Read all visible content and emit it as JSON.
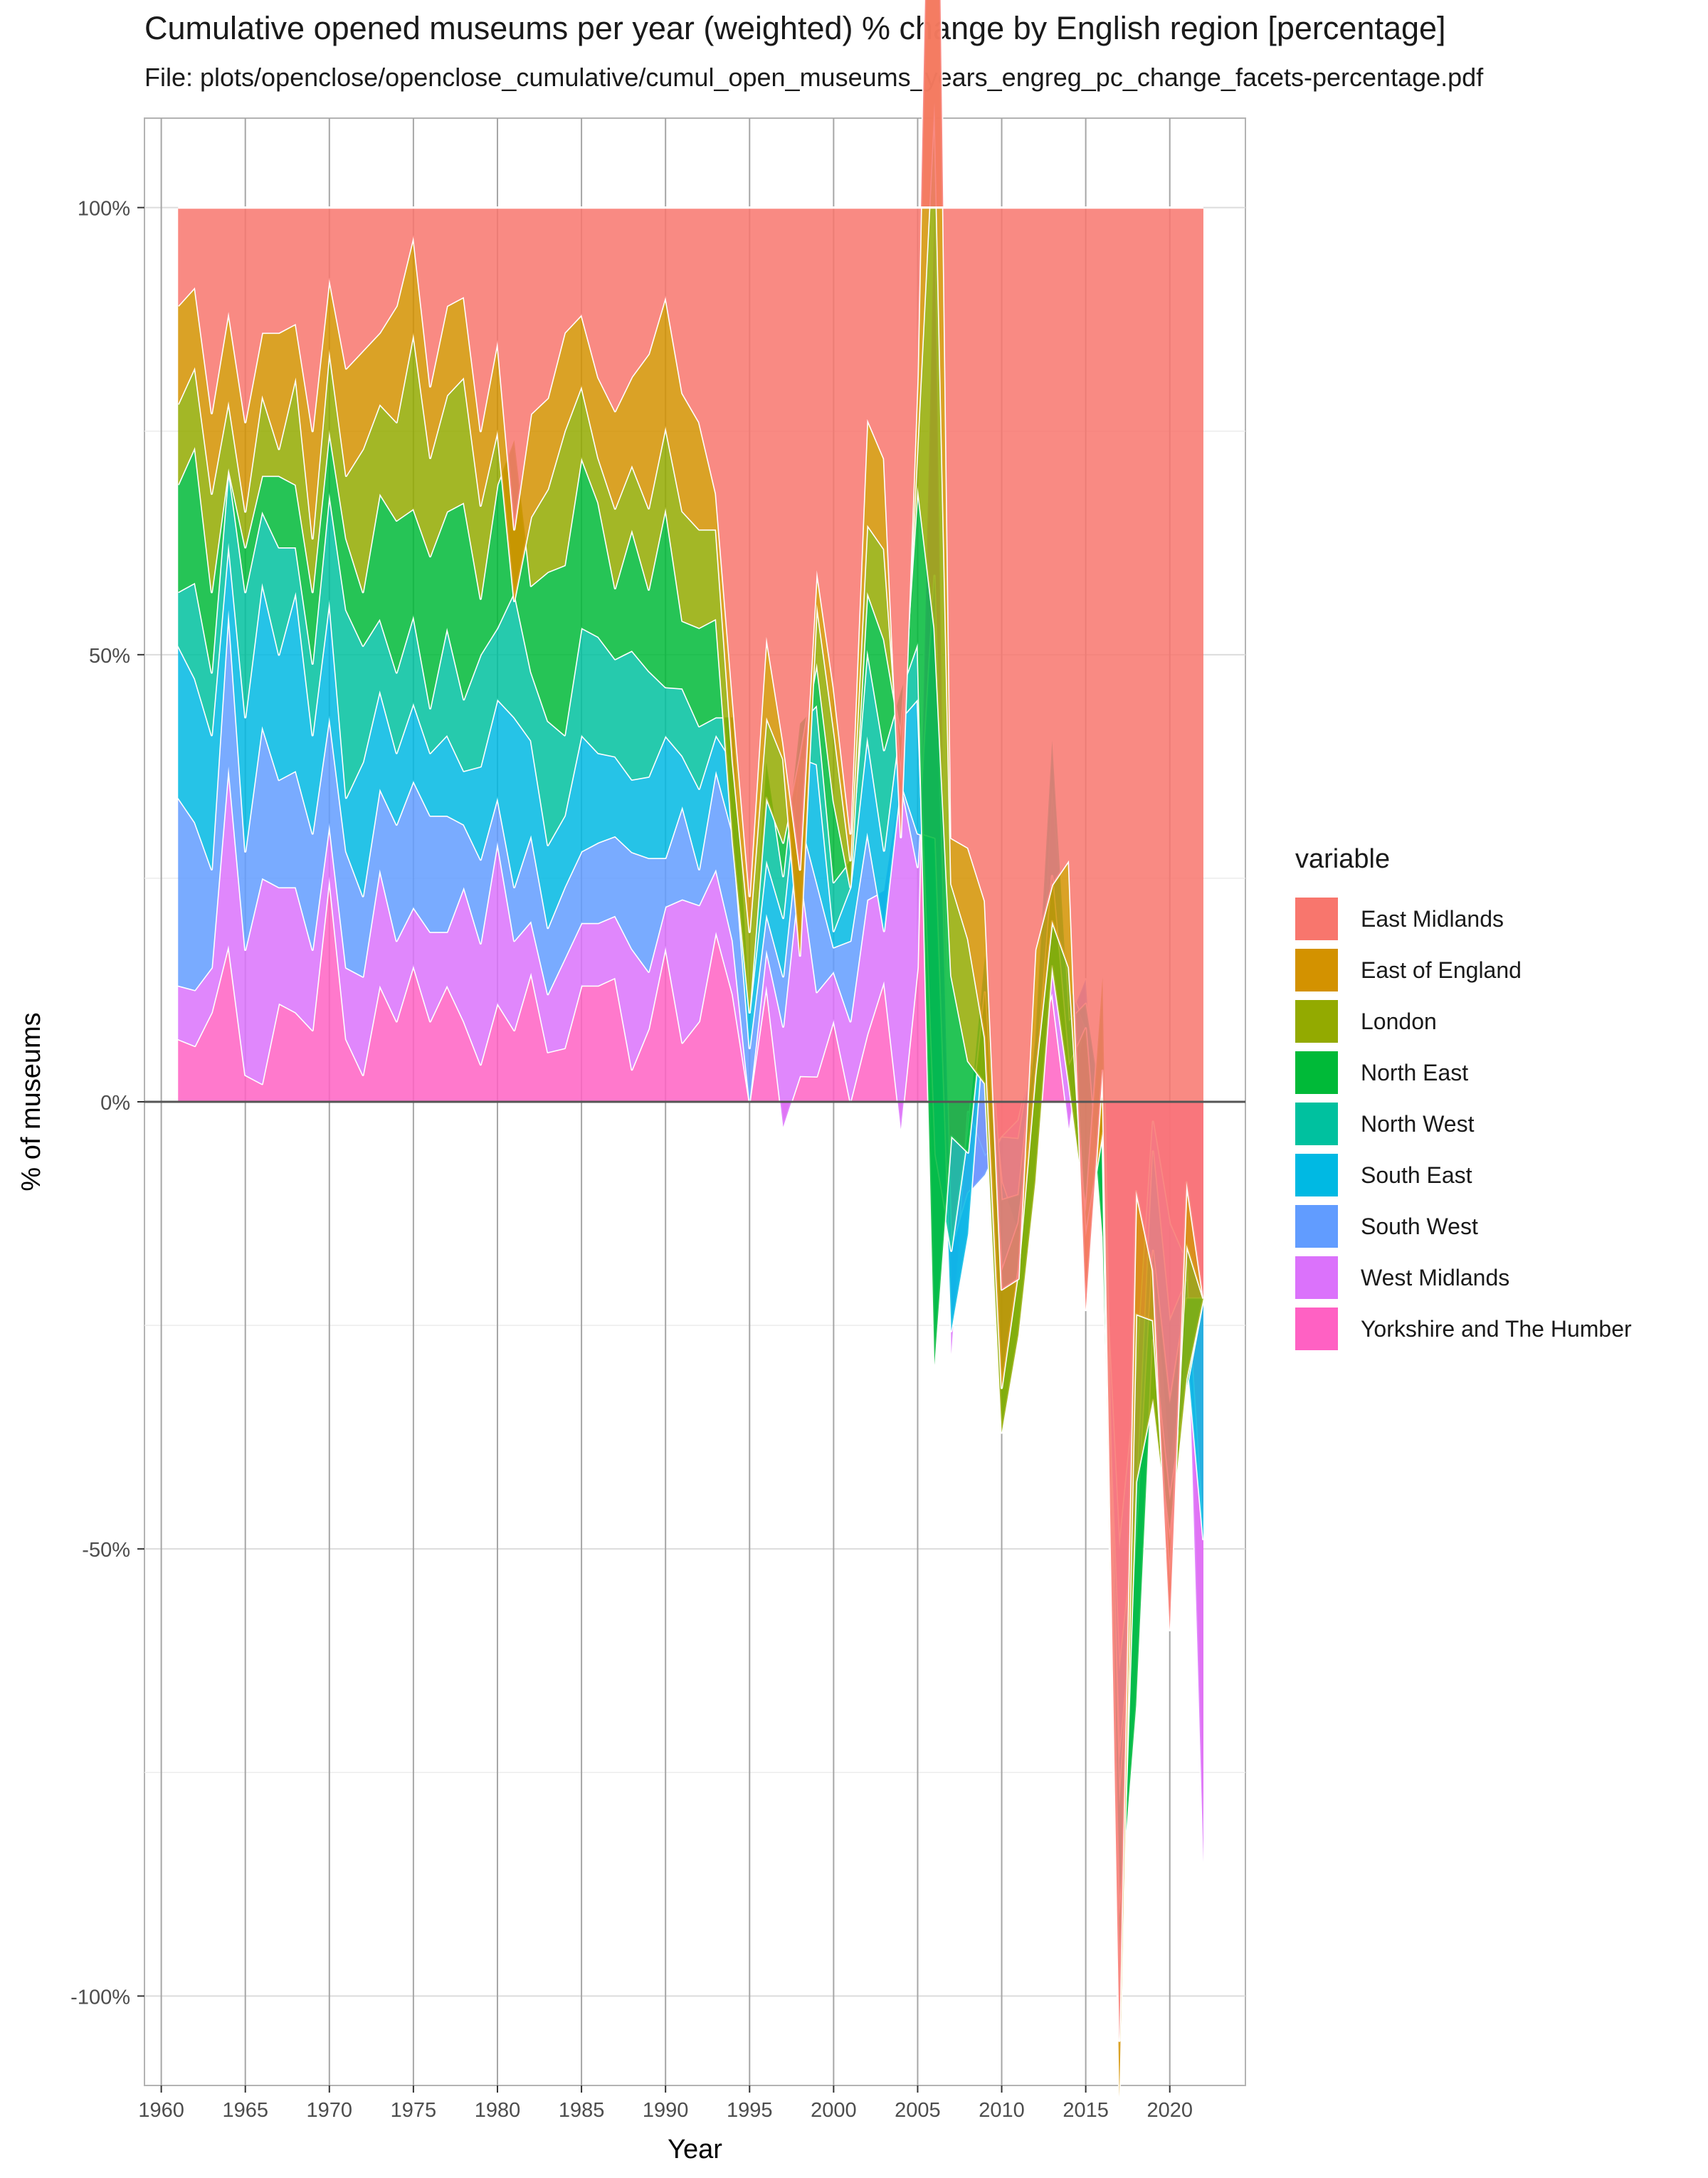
{
  "title": "Cumulative opened museums per year (weighted) % change by English region [percentage]",
  "subtitle": "File: plots/openclose/openclose_cumulative/cumul_open_museums_years_engreg_pc_change_facets-percentage.pdf",
  "legend_title": "variable",
  "chart_data": {
    "type": "area",
    "title": "Cumulative opened museums per year (weighted) % change by English region [percentage]",
    "xlabel": "Year",
    "ylabel": "% of museums",
    "xlim": [
      1959,
      2024.5
    ],
    "ylim": [
      -110,
      110
    ],
    "x_ticks": [
      1960,
      1965,
      1970,
      1975,
      1980,
      1985,
      1990,
      1995,
      2000,
      2005,
      2010,
      2015,
      2020
    ],
    "y_ticks": [
      -100,
      -50,
      0,
      50,
      100
    ],
    "y_tick_labels": [
      "-100%",
      "-50%",
      "0%",
      "50%",
      "100%"
    ],
    "x_tick_labels": [
      "1960",
      "1965",
      "1970",
      "1975",
      "1980",
      "1985",
      "1990",
      "1995",
      "2000",
      "2005",
      "2010",
      "2015",
      "2020"
    ],
    "grid": true,
    "legend_position": "right",
    "stacking": "percent",
    "x": [
      1961,
      1962,
      1963,
      1964,
      1965,
      1966,
      1967,
      1968,
      1969,
      1970,
      1971,
      1972,
      1973,
      1974,
      1975,
      1976,
      1977,
      1978,
      1979,
      1980,
      1981,
      1982,
      1983,
      1984,
      1985,
      1986,
      1987,
      1988,
      1989,
      1990,
      1991,
      1992,
      1993,
      1994,
      1995,
      1996,
      1997,
      1998,
      1999,
      2000,
      2001,
      2002,
      2003,
      2004,
      2005,
      2006,
      2007,
      2008,
      2009,
      2010,
      2011,
      2012,
      2013,
      2014,
      2015,
      2016,
      2017,
      2018,
      2019,
      2020,
      2021,
      2022
    ],
    "series": [
      {
        "name": "Yorkshire and The Humber",
        "color": "#FF61C3",
        "values": [
          7,
          7,
          10,
          21,
          3,
          2,
          11,
          10,
          8,
          25,
          7,
          3,
          13,
          9,
          14,
          9,
          13,
          9,
          4,
          11,
          8,
          15,
          6,
          6,
          13,
          13,
          14,
          4,
          9,
          19,
          7,
          9,
          19,
          12,
          0,
          13,
          -3,
          3,
          3,
          10,
          0,
          7,
          12,
          -3,
          12,
          17,
          -22,
          -1,
          -6,
          -4,
          -2,
          6,
          12,
          -3,
          8,
          -10,
          -40,
          -25,
          -2,
          -15,
          -18,
          -85
        ]
      },
      {
        "name": "West Midlands",
        "color": "#DB72FB",
        "values": [
          6,
          7,
          5,
          24,
          14,
          23,
          13,
          14,
          9,
          6,
          8,
          11,
          13,
          9,
          6,
          10,
          6,
          15,
          13,
          18,
          10,
          6,
          7,
          10,
          7,
          7,
          7,
          15,
          7,
          5,
          17,
          13,
          7,
          6,
          0,
          4,
          12,
          24,
          10,
          6,
          9,
          14,
          9,
          38,
          9,
          -7,
          9,
          -8,
          -2,
          0,
          -2,
          1,
          26,
          12,
          2,
          -4,
          -11,
          -12,
          -3,
          -12,
          -2,
          36
        ]
      },
      {
        "name": "South West",
        "color": "#619CFF",
        "values": [
          21,
          21,
          11,
          21,
          11,
          17,
          12,
          13,
          13,
          12,
          13,
          9,
          9,
          13,
          13,
          13,
          13,
          7,
          9,
          5,
          6,
          10,
          8,
          8,
          8,
          9,
          9,
          12,
          14,
          6,
          11,
          4,
          11,
          12,
          6,
          4,
          6,
          6,
          13,
          3,
          9,
          7,
          -4,
          0,
          3,
          -5,
          -7,
          -4,
          18,
          -5,
          -10,
          -5,
          -3,
          4,
          -4,
          4,
          -8,
          -6,
          -10,
          -17,
          -8,
          0
        ]
      },
      {
        "name": "South East",
        "color": "#00B9E3",
        "values": [
          17,
          18,
          15,
          9,
          15,
          16,
          14,
          20,
          11,
          13,
          6,
          15,
          11,
          8,
          8,
          7,
          9,
          6,
          10,
          11,
          19,
          11,
          10,
          8,
          13,
          10,
          9,
          9,
          10,
          15,
          6,
          9,
          4,
          8,
          4,
          6,
          7,
          7,
          14,
          2,
          6,
          10,
          8,
          7,
          12,
          -6,
          7,
          10,
          6,
          -2,
          4,
          5,
          5,
          -4,
          2,
          9,
          -4,
          3,
          0,
          7,
          6,
          27
        ]
      },
      {
        "name": "North West",
        "color": "#00C19F",
        "values": [
          6,
          12,
          7,
          10,
          14,
          8,
          12,
          5,
          8,
          12,
          21,
          13,
          8,
          9,
          9,
          5,
          12,
          8,
          12,
          8,
          14,
          8,
          15,
          9,
          12,
          13,
          11,
          16,
          13,
          6,
          8,
          7,
          2,
          5,
          0,
          11,
          5,
          4,
          7,
          6,
          3,
          9,
          10,
          3,
          5,
          -4,
          10,
          -2,
          -4,
          -8,
          -3,
          -6,
          -15,
          -5,
          -2,
          -12,
          -10,
          -14,
          -9,
          -12,
          -10,
          0
        ]
      },
      {
        "name": "North East",
        "color": "#00BA38",
        "values": [
          12,
          17,
          9,
          0,
          5,
          4,
          8,
          7,
          8,
          7,
          8,
          6,
          14,
          17,
          11,
          17,
          13,
          22,
          6,
          16,
          17,
          10,
          18,
          19,
          19,
          15,
          8,
          15,
          10,
          22,
          8,
          11,
          11,
          -14,
          0,
          -4,
          4,
          -4,
          5,
          10,
          -3,
          6,
          11,
          -5,
          14,
          14,
          14,
          9,
          -10,
          -18,
          -12,
          -10,
          -10,
          -2,
          -15,
          25,
          -7,
          20,
          -6,
          -5,
          1,
          0
        ]
      },
      {
        "name": "London",
        "color": "#93AA00",
        "values": [
          9,
          10,
          11,
          9,
          4,
          9,
          3,
          12,
          6,
          9,
          7,
          16,
          10,
          11,
          18,
          11,
          13,
          14,
          10,
          6,
          -18,
          8,
          10,
          15,
          8,
          5,
          9,
          8,
          10,
          10,
          13,
          11,
          10,
          9,
          9,
          9,
          10,
          -23,
          7,
          9,
          3,
          7,
          9,
          -5,
          4,
          10,
          8,
          12,
          5,
          5,
          7,
          12,
          5,
          13,
          -2,
          -15,
          -9,
          15,
          8,
          -5,
          15,
          0
        ]
      },
      {
        "name": "East of England",
        "color": "#D39200",
        "values": [
          11,
          10,
          9,
          12,
          10,
          7,
          13,
          6,
          12,
          8,
          12,
          11,
          8,
          13,
          10,
          8,
          10,
          9,
          8,
          10,
          8,
          12,
          11,
          11,
          8,
          9,
          11,
          11,
          19,
          16,
          14,
          12,
          4,
          7,
          4,
          9,
          2,
          10,
          4,
          5,
          3,
          11,
          9,
          -6,
          6,
          11,
          4,
          9,
          15,
          11,
          -1,
          14,
          4,
          12,
          -6,
          6,
          5,
          11,
          5,
          -6,
          7,
          0
        ]
      },
      {
        "name": "East Midlands",
        "color": "#F8766D",
        "values": [
          11,
          10,
          23,
          14,
          24,
          14,
          14,
          13,
          25,
          8,
          18,
          16,
          14,
          11,
          3,
          20,
          11,
          10,
          24,
          15,
          36,
          24,
          23,
          14,
          12,
          19,
          23,
          21,
          18,
          11,
          22,
          24,
          32,
          55,
          77,
          48,
          64,
          77,
          43,
          59,
          70,
          22,
          25,
          69,
          15,
          -13,
          55,
          63,
          76,
          121,
          115,
          83,
          75,
          73,
          90,
          83,
          164,
          88,
          107,
          175,
          109,
          122
        ]
      }
    ]
  }
}
